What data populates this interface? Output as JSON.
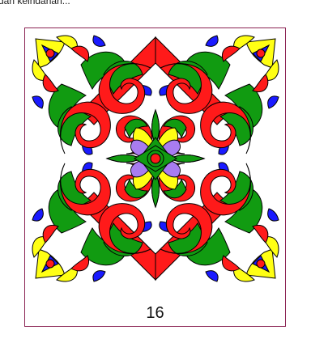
{
  "page": {
    "snippet_text": "dan keindahan..."
  },
  "card": {
    "image_alt": "ornamen motif batik",
    "number_label": "16"
  },
  "ornament_colors": {
    "red": "#ff1a1a",
    "green": "#119b11",
    "yellow": "#ffff14",
    "blue": "#1a1aff",
    "purple": "#a87cf0",
    "outline": "#000000",
    "border": "#8a2252"
  }
}
